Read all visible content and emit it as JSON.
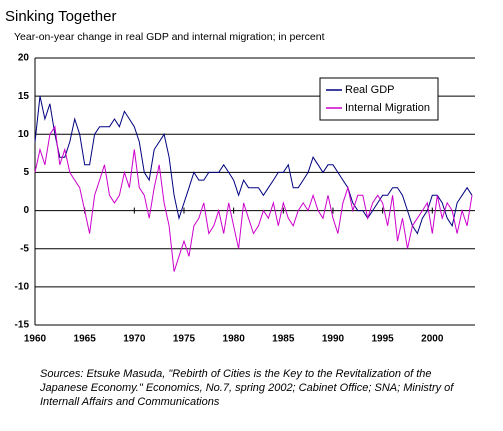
{
  "chart_data": {
    "type": "line",
    "title": "Sinking Together",
    "subtitle": "Year-on-year change in real GDP and internal migration; in percent",
    "notes": "Sources: Etsuke Masuda, \"Rebirth of Cities is the Key to the Revitalization of the Japanese Economy.\" Economics, No.7, spring 2002; Cabinet Office; SNA; Ministry of Internall Affairs and Communications",
    "x": [
      1960,
      1960.5,
      1961,
      1961.5,
      1962,
      1962.5,
      1963,
      1963.5,
      1964,
      1964.5,
      1965,
      1965.5,
      1966,
      1966.5,
      1967,
      1967.5,
      1968,
      1968.5,
      1969,
      1969.5,
      1970,
      1970.5,
      1971,
      1971.5,
      1972,
      1972.5,
      1973,
      1973.5,
      1974,
      1974.5,
      1975,
      1975.5,
      1976,
      1976.5,
      1977,
      1977.5,
      1978,
      1978.5,
      1979,
      1979.5,
      1980,
      1980.5,
      1981,
      1981.5,
      1982,
      1982.5,
      1983,
      1983.5,
      1984,
      1984.5,
      1985,
      1985.5,
      1986,
      1986.5,
      1987,
      1987.5,
      1988,
      1988.5,
      1989,
      1989.5,
      1990,
      1990.5,
      1991,
      1991.5,
      1992,
      1992.5,
      1993,
      1993.5,
      1994,
      1994.5,
      1995,
      1995.5,
      1996,
      1996.5,
      1997,
      1997.5,
      1998,
      1998.5,
      1999,
      1999.5,
      2000,
      2000.5,
      2001,
      2001.5,
      2002,
      2002.5,
      2003,
      2003.5,
      2004
    ],
    "series": [
      {
        "name": "Real GDP",
        "color": "#000080",
        "values": [
          9,
          15,
          12,
          14,
          10,
          7,
          7,
          9,
          12,
          10,
          6,
          6,
          10,
          11,
          11,
          11,
          12,
          11,
          13,
          12,
          11,
          9,
          5,
          4,
          8,
          9,
          10,
          7,
          2,
          -1,
          1,
          3,
          5,
          4,
          4,
          5,
          5,
          5,
          6,
          5,
          4,
          2,
          4,
          3,
          3,
          3,
          2,
          3,
          4,
          5,
          5,
          6,
          3,
          3,
          4,
          5,
          7,
          6,
          5,
          6,
          6,
          5,
          4,
          3,
          1,
          0,
          0,
          -1,
          0,
          1,
          2,
          2,
          3,
          3,
          2,
          0,
          -2,
          -3,
          -1,
          0,
          2,
          2,
          1,
          -1,
          -2,
          1,
          2,
          3,
          2
        ]
      },
      {
        "name": "Internal Migration",
        "color": "#cc00cc",
        "values": [
          5,
          8,
          6,
          10,
          11,
          6,
          8,
          5,
          4,
          3,
          0,
          -3,
          2,
          4,
          6,
          2,
          1,
          2,
          5,
          3,
          8,
          3,
          2,
          -1,
          3,
          6,
          1,
          -2,
          -8,
          -6,
          -4,
          -6,
          -2,
          -1,
          1,
          -3,
          -2,
          0,
          -3,
          1,
          -2,
          -5,
          1,
          -1,
          -3,
          -2,
          0,
          -1,
          1,
          -2,
          1,
          -1,
          -2,
          0,
          1,
          0,
          2,
          0,
          -1,
          2,
          -1,
          -3,
          1,
          3,
          0,
          2,
          2,
          -1,
          1,
          2,
          1,
          -2,
          2,
          -4,
          -1,
          -5,
          -2,
          -1,
          0,
          1,
          -3,
          2,
          -1,
          1,
          0,
          -3,
          0,
          -2,
          2
        ]
      }
    ],
    "xlim": [
      1960,
      2004.3
    ],
    "xticks": [
      1960,
      1965,
      1970,
      1975,
      1980,
      1985,
      1990,
      1995,
      2000
    ],
    "ylim": [
      -15,
      20
    ],
    "yticks": [
      20,
      15,
      10,
      5,
      0,
      -5,
      -10,
      -15
    ],
    "grid": true,
    "legend": "upper-right"
  }
}
